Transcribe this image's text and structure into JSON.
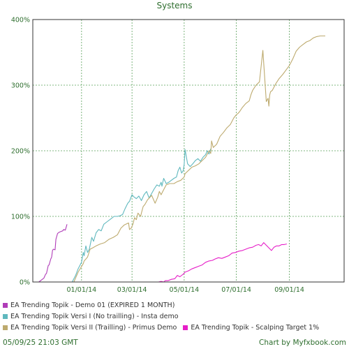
{
  "chart_data": {
    "type": "line",
    "title": "Systems",
    "xlabel": "",
    "ylabel": "",
    "x_ticks": [
      "01/01/14",
      "03/01/14",
      "05/01/14",
      "07/01/14",
      "09/01/14"
    ],
    "y_ticks": [
      "0%",
      "100%",
      "200%",
      "300%",
      "400%"
    ],
    "ylim": [
      0,
      400
    ],
    "grid": true,
    "legend_position": "bottom",
    "series": [
      {
        "name": "EA Trending Topik - Demo 01 (EXPIRED 1 MONTH)",
        "color": "#b03cb8",
        "x": [
          "2013-11-12",
          "2013-11-15",
          "2013-11-18",
          "2013-11-20",
          "2013-11-21",
          "2013-11-23",
          "2013-11-24",
          "2013-11-26",
          "2013-11-27",
          "2013-11-28",
          "2013-11-29",
          "2013-12-01",
          "2013-12-02",
          "2013-12-04",
          "2013-12-06",
          "2013-12-08",
          "2013-12-10",
          "2013-12-11",
          "2013-12-13",
          "2013-12-15"
        ],
        "y": [
          0,
          3,
          6,
          12,
          13,
          25,
          26,
          35,
          38,
          48,
          50,
          49,
          65,
          74,
          76,
          77,
          78,
          80,
          79,
          88
        ]
      },
      {
        "name": "EA Trending Topik Versi I (No trailling) - Insta demo",
        "color": "#5fb8be",
        "x": [
          "2013-12-21",
          "2013-12-25",
          "2013-12-28",
          "2014-01-01",
          "2014-01-03",
          "2014-01-04",
          "2014-01-06",
          "2014-01-08",
          "2014-01-10",
          "2014-01-13",
          "2014-01-15",
          "2014-01-18",
          "2014-01-21",
          "2014-01-24",
          "2014-01-27",
          "2014-01-31",
          "2014-02-04",
          "2014-02-08",
          "2014-02-12",
          "2014-02-15",
          "2014-02-18",
          "2014-02-21",
          "2014-02-24",
          "2014-02-26",
          "2014-03-01",
          "2014-03-03",
          "2014-03-06",
          "2014-03-09",
          "2014-03-12",
          "2014-03-15",
          "2014-03-18",
          "2014-03-21",
          "2014-03-24",
          "2014-03-27",
          "2014-03-30",
          "2014-04-02",
          "2014-04-04",
          "2014-04-05",
          "2014-04-07",
          "2014-04-10",
          "2014-04-13",
          "2014-04-16",
          "2014-04-19",
          "2014-04-22",
          "2014-04-24",
          "2014-04-26",
          "2014-04-28",
          "2014-04-30",
          "2014-05-01",
          "2014-05-02",
          "2014-05-05",
          "2014-05-08",
          "2014-05-11",
          "2014-05-14",
          "2014-05-17",
          "2014-05-20",
          "2014-05-23",
          "2014-05-26",
          "2014-05-28",
          "2014-05-30",
          "2014-06-01"
        ],
        "y": [
          0,
          10,
          20,
          30,
          45,
          40,
          55,
          45,
          50,
          68,
          62,
          75,
          80,
          78,
          88,
          92,
          96,
          100,
          100,
          101,
          103,
          112,
          120,
          123,
          133,
          130,
          127,
          131,
          124,
          133,
          138,
          128,
          135,
          142,
          148,
          146,
          152,
          146,
          158,
          150,
          152,
          155,
          158,
          160,
          170,
          175,
          166,
          170,
          180,
          202,
          180,
          176,
          180,
          185,
          188,
          184,
          190,
          194,
          200,
          195,
          203
        ]
      },
      {
        "name": "EA Trending Topik Versi II (Trailling) - Primus Demo",
        "color": "#bdaa6e",
        "x": [
          "2013-12-23",
          "2013-12-28",
          "2014-01-03",
          "2014-01-04",
          "2014-01-06",
          "2014-01-08",
          "2014-01-11",
          "2014-01-14",
          "2014-01-18",
          "2014-01-23",
          "2014-01-28",
          "2014-02-02",
          "2014-02-07",
          "2014-02-12",
          "2014-02-16",
          "2014-02-20",
          "2014-02-25",
          "2014-02-26",
          "2014-02-28",
          "2014-03-02",
          "2014-03-04",
          "2014-03-06",
          "2014-03-08",
          "2014-03-11",
          "2014-03-13",
          "2014-03-14",
          "2014-03-16",
          "2014-03-19",
          "2014-03-24",
          "2014-03-28",
          "2014-03-31",
          "2014-04-02",
          "2014-04-04",
          "2014-04-06",
          "2014-04-10",
          "2014-04-14",
          "2014-04-19",
          "2014-04-23",
          "2014-04-27",
          "2014-05-01",
          "2014-05-02",
          "2014-05-06",
          "2014-05-10",
          "2014-05-14",
          "2014-05-18",
          "2014-05-22",
          "2014-05-26",
          "2014-05-30",
          "2014-06-01",
          "2014-06-02",
          "2014-06-04",
          "2014-06-08",
          "2014-06-12",
          "2014-06-16",
          "2014-06-20",
          "2014-06-24",
          "2014-06-28",
          "2014-07-01",
          "2014-07-03",
          "2014-07-05",
          "2014-07-08",
          "2014-07-12",
          "2014-07-16",
          "2014-07-18",
          "2014-07-20",
          "2014-07-24",
          "2014-07-28",
          "2014-08-01",
          "2014-08-05",
          "2014-08-07",
          "2014-08-08",
          "2014-08-09",
          "2014-08-10",
          "2014-08-12",
          "2014-08-16",
          "2014-08-20",
          "2014-08-24",
          "2014-08-28",
          "2014-09-01",
          "2014-09-05",
          "2014-09-07",
          "2014-09-09",
          "2014-09-13",
          "2014-09-17",
          "2014-09-21",
          "2014-09-25",
          "2014-09-29",
          "2014-10-03",
          "2014-10-07",
          "2014-10-13"
        ],
        "y": [
          0,
          15,
          28,
          32,
          35,
          38,
          50,
          52,
          55,
          58,
          60,
          65,
          68,
          72,
          82,
          87,
          90,
          80,
          82,
          88,
          98,
          95,
          105,
          100,
          110,
          115,
          118,
          125,
          132,
          120,
          129,
          138,
          133,
          138,
          148,
          150,
          150,
          153,
          155,
          160,
          165,
          170,
          175,
          177,
          180,
          185,
          190,
          200,
          196,
          215,
          205,
          210,
          222,
          228,
          235,
          240,
          250,
          255,
          257,
          260,
          266,
          272,
          276,
          285,
          292,
          300,
          305,
          353,
          275,
          280,
          268,
          285,
          290,
          292,
          302,
          310,
          316,
          323,
          330,
          340,
          346,
          352,
          358,
          362,
          366,
          368,
          372,
          374,
          375,
          375
        ]
      },
      {
        "name": "EA Trending Topik - Scalping Target 1%",
        "color": "#e61ec8",
        "x": [
          "2014-04-01",
          "2014-04-04",
          "2014-04-07",
          "2014-04-09",
          "2014-04-12",
          "2014-04-16",
          "2014-04-20",
          "2014-04-23",
          "2014-04-26",
          "2014-04-30",
          "2014-05-02",
          "2014-05-06",
          "2014-05-10",
          "2014-05-14",
          "2014-05-18",
          "2014-05-22",
          "2014-05-26",
          "2014-05-30",
          "2014-06-03",
          "2014-06-06",
          "2014-06-10",
          "2014-06-14",
          "2014-06-18",
          "2014-06-22",
          "2014-06-26",
          "2014-06-30",
          "2014-07-04",
          "2014-07-08",
          "2014-07-12",
          "2014-07-16",
          "2014-07-20",
          "2014-07-24",
          "2014-07-27",
          "2014-07-30",
          "2014-08-02",
          "2014-08-05",
          "2014-08-08",
          "2014-08-11",
          "2014-08-14",
          "2014-08-17",
          "2014-08-20",
          "2014-08-23",
          "2014-08-26",
          "2014-08-29"
        ],
        "y": [
          0,
          1,
          0,
          2,
          2,
          4,
          5,
          10,
          8,
          12,
          15,
          17,
          20,
          22,
          24,
          26,
          30,
          32,
          33,
          35,
          37,
          36,
          38,
          40,
          44,
          45,
          47,
          48,
          50,
          52,
          53,
          56,
          57,
          55,
          60,
          56,
          52,
          48,
          53,
          55,
          55,
          57,
          57,
          58
        ]
      }
    ]
  },
  "footer": {
    "left": "05/09/25 21:03 GMT",
    "right": "Chart by Myfxbook.com"
  }
}
